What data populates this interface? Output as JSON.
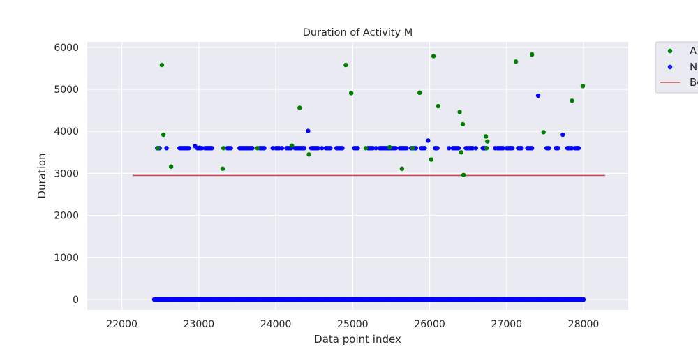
{
  "chart_data": {
    "type": "scatter",
    "title": "Duration of Activity M",
    "xlabel": "Data point index",
    "ylabel": "Duration",
    "xlim": [
      21550,
      28580
    ],
    "ylim": [
      -250,
      6130
    ],
    "x_ticks": [
      22000,
      23000,
      24000,
      25000,
      26000,
      27000,
      28000
    ],
    "y_ticks": [
      0,
      1000,
      2000,
      3000,
      4000,
      5000,
      6000
    ],
    "grid": true,
    "legend_placement": "outside-top-right",
    "background": "#eaeaf2",
    "series": [
      {
        "name": "A",
        "color": "#008000",
        "marker": "dot",
        "points": [
          [
            22470,
            3600
          ],
          [
            22520,
            5580
          ],
          [
            22540,
            3920
          ],
          [
            22640,
            3160
          ],
          [
            23310,
            3110
          ],
          [
            23320,
            3600
          ],
          [
            23760,
            3600
          ],
          [
            24210,
            3660
          ],
          [
            24310,
            4560
          ],
          [
            24430,
            3450
          ],
          [
            24910,
            5580
          ],
          [
            24980,
            4910
          ],
          [
            25170,
            3600
          ],
          [
            25480,
            3620
          ],
          [
            25640,
            3110
          ],
          [
            25780,
            3600
          ],
          [
            25870,
            4920
          ],
          [
            26020,
            3330
          ],
          [
            26050,
            5790
          ],
          [
            26110,
            4600
          ],
          [
            26390,
            4460
          ],
          [
            26410,
            3500
          ],
          [
            26430,
            4170
          ],
          [
            26440,
            2960
          ],
          [
            26730,
            3880
          ],
          [
            26740,
            3600
          ],
          [
            26750,
            3760
          ],
          [
            27120,
            5660
          ],
          [
            27330,
            5830
          ],
          [
            27480,
            3980
          ],
          [
            27850,
            4730
          ],
          [
            27990,
            5080
          ]
        ]
      },
      {
        "name": "N",
        "color": "#0000ff",
        "marker": "dot",
        "points": [
          [
            22580,
            3600
          ],
          [
            22950,
            3650
          ],
          [
            23010,
            3610
          ],
          [
            23960,
            3600
          ],
          [
            24080,
            3600
          ],
          [
            24420,
            4010
          ],
          [
            24600,
            3600
          ],
          [
            25300,
            3600
          ],
          [
            25700,
            3600
          ],
          [
            25980,
            3780
          ],
          [
            26250,
            3600
          ],
          [
            26600,
            3600
          ],
          [
            26850,
            3600
          ],
          [
            27050,
            3600
          ],
          [
            27410,
            4850
          ],
          [
            27660,
            3600
          ],
          [
            27730,
            3920
          ],
          [
            27920,
            3600
          ]
        ],
        "runs_at_3600": [
          [
            22460,
            22500
          ],
          [
            22750,
            22880
          ],
          [
            22980,
            23050
          ],
          [
            23080,
            23180
          ],
          [
            23370,
            23420
          ],
          [
            23530,
            23700
          ],
          [
            23790,
            23850
          ],
          [
            24000,
            24050
          ],
          [
            24140,
            24200
          ],
          [
            24250,
            24380
          ],
          [
            24460,
            24550
          ],
          [
            24650,
            24710
          ],
          [
            24790,
            24870
          ],
          [
            25020,
            25070
          ],
          [
            25200,
            25260
          ],
          [
            25350,
            25560
          ],
          [
            25610,
            25690
          ],
          [
            25760,
            25820
          ],
          [
            25890,
            25940
          ],
          [
            26070,
            26100
          ],
          [
            26300,
            26380
          ],
          [
            26470,
            26560
          ],
          [
            26690,
            26740
          ],
          [
            26880,
            26960
          ],
          [
            27000,
            27080
          ],
          [
            27150,
            27200
          ],
          [
            27270,
            27340
          ],
          [
            27520,
            27550
          ],
          [
            27640,
            27680
          ],
          [
            27790,
            27860
          ],
          [
            27890,
            27940
          ]
        ],
        "zero_range": [
          22420,
          28000
        ]
      },
      {
        "name": "Be",
        "color": "#c44e52",
        "type": "line",
        "points": [
          [
            22140,
            2950
          ],
          [
            28280,
            2950
          ]
        ]
      }
    ]
  }
}
